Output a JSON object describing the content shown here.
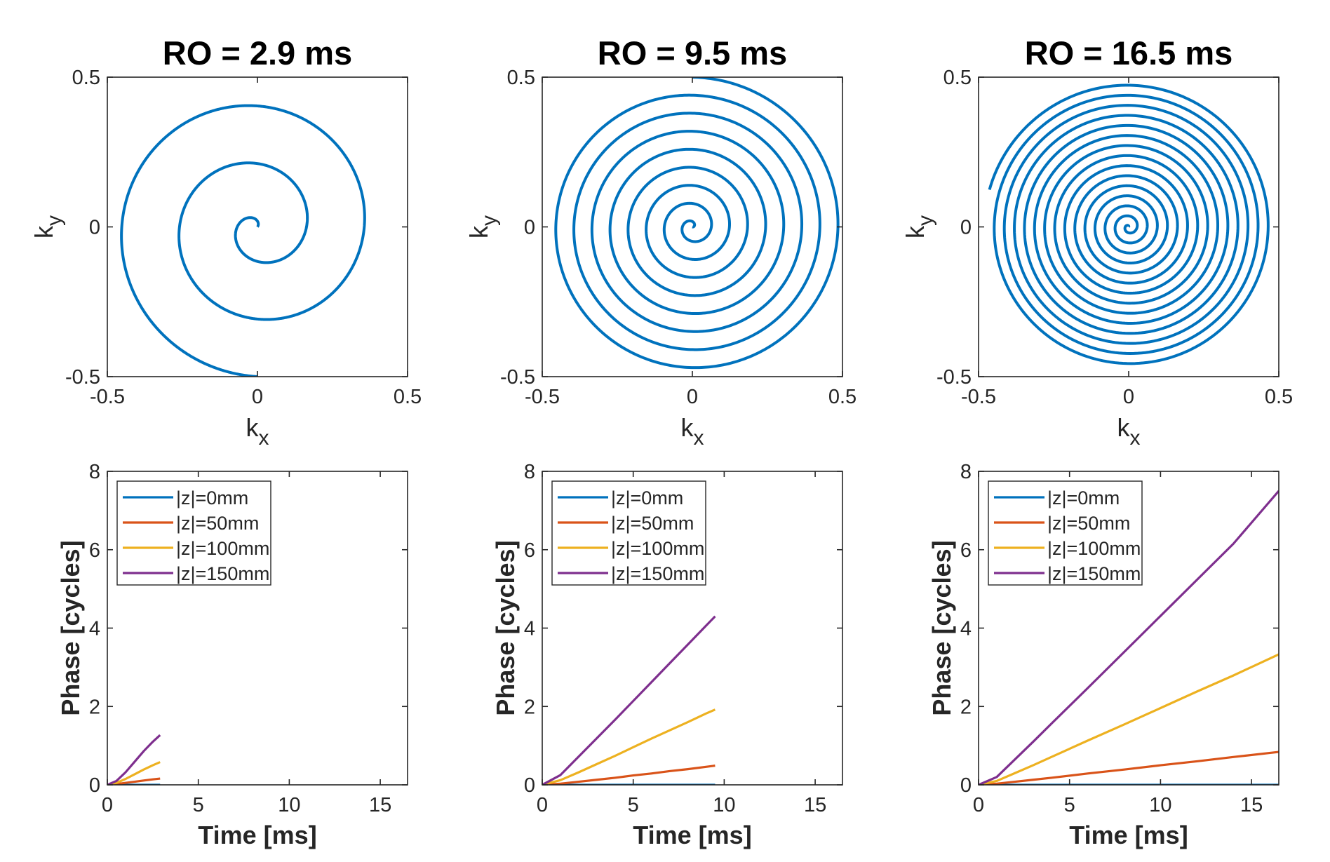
{
  "colors": {
    "spiral": "#0072BD",
    "z0": "#0072BD",
    "z50": "#D95319",
    "z100": "#EDB120",
    "z150": "#7E2F8E",
    "axes": "#262626"
  },
  "chart_data": [
    {
      "type": "line",
      "panel": "spiral",
      "title": "RO = 2.9 ms",
      "xlabel": "k",
      "xlabel_sub": "x",
      "ylabel": "k",
      "ylabel_sub": "y",
      "xlim": [
        -0.5,
        0.5
      ],
      "ylim": [
        -0.5,
        0.5
      ],
      "xticks": [
        "-0.5",
        "0",
        "0.5"
      ],
      "yticks": [
        "-0.5",
        "0",
        "0.5"
      ],
      "spiral": {
        "turns": 2.6,
        "r_max": 0.5,
        "end_angle_deg": -90
      }
    },
    {
      "type": "line",
      "panel": "spiral",
      "title": "RO = 9.5 ms",
      "xlabel": "k",
      "xlabel_sub": "x",
      "ylabel": "k",
      "ylabel_sub": "y",
      "xlim": [
        -0.5,
        0.5
      ],
      "ylim": [
        -0.5,
        0.5
      ],
      "xticks": [
        "-0.5",
        "0",
        "0.5"
      ],
      "yticks": [
        "-0.5",
        "0",
        "0.5"
      ],
      "spiral": {
        "turns": 8.3,
        "r_max": 0.5,
        "end_angle_deg": 90
      }
    },
    {
      "type": "line",
      "panel": "spiral",
      "title": "RO = 16.5 ms",
      "xlabel": "k",
      "xlabel_sub": "x",
      "ylabel": "k",
      "ylabel_sub": "y",
      "xlim": [
        -0.5,
        0.5
      ],
      "ylim": [
        -0.5,
        0.5
      ],
      "xticks": [
        "-0.5",
        "0",
        "0.5"
      ],
      "yticks": [
        "-0.5",
        "0",
        "0.5"
      ],
      "spiral": {
        "turns": 14.3,
        "r_max": 0.48,
        "end_angle_deg": 165
      }
    },
    {
      "type": "line",
      "panel": "phase",
      "xlabel": "Time [ms]",
      "ylabel": "Phase [cycles]",
      "xlim": [
        0,
        16.5
      ],
      "ylim": [
        0,
        8
      ],
      "xticks": [
        "0",
        "5",
        "10",
        "15"
      ],
      "yticks": [
        "0",
        "2",
        "4",
        "6",
        "8"
      ],
      "legend_position": "top-left",
      "series": [
        {
          "name": "|z|=0mm",
          "x": [
            0,
            2.9
          ],
          "y": [
            0,
            0
          ]
        },
        {
          "name": "|z|=50mm",
          "x": [
            0,
            0.5,
            1.0,
            1.5,
            2.0,
            2.5,
            2.9
          ],
          "y": [
            0,
            0.02,
            0.05,
            0.08,
            0.11,
            0.14,
            0.16
          ]
        },
        {
          "name": "|z|=100mm",
          "x": [
            0,
            0.5,
            1.0,
            1.5,
            2.0,
            2.5,
            2.9
          ],
          "y": [
            0,
            0.05,
            0.15,
            0.27,
            0.39,
            0.5,
            0.58
          ]
        },
        {
          "name": "|z|=150mm",
          "x": [
            0,
            0.5,
            1.0,
            1.5,
            2.0,
            2.5,
            2.9
          ],
          "y": [
            0,
            0.1,
            0.32,
            0.59,
            0.86,
            1.1,
            1.27
          ]
        }
      ]
    },
    {
      "type": "line",
      "panel": "phase",
      "xlabel": "Time [ms]",
      "ylabel": "Phase [cycles]",
      "xlim": [
        0,
        16.5
      ],
      "ylim": [
        0,
        8
      ],
      "xticks": [
        "0",
        "5",
        "10",
        "15"
      ],
      "yticks": [
        "0",
        "2",
        "4",
        "6",
        "8"
      ],
      "legend_position": "top-left",
      "series": [
        {
          "name": "|z|=0mm",
          "x": [
            0,
            9.5
          ],
          "y": [
            0,
            0
          ]
        },
        {
          "name": "|z|=50mm",
          "x": [
            0,
            1,
            2,
            3,
            4,
            5,
            6,
            7,
            8,
            9,
            9.5
          ],
          "y": [
            0,
            0.03,
            0.08,
            0.13,
            0.18,
            0.24,
            0.29,
            0.35,
            0.4,
            0.46,
            0.49
          ]
        },
        {
          "name": "|z|=100mm",
          "x": [
            0,
            1,
            2,
            3,
            4,
            5,
            6,
            7,
            8,
            9,
            9.5
          ],
          "y": [
            0,
            0.12,
            0.32,
            0.53,
            0.74,
            0.96,
            1.18,
            1.39,
            1.6,
            1.82,
            1.92
          ]
        },
        {
          "name": "|z|=150mm",
          "x": [
            0,
            1,
            2,
            3,
            4,
            5,
            6,
            7,
            8,
            9,
            9.5
          ],
          "y": [
            0,
            0.25,
            0.72,
            1.19,
            1.66,
            2.14,
            2.62,
            3.1,
            3.58,
            4.06,
            4.3
          ]
        }
      ]
    },
    {
      "type": "line",
      "panel": "phase",
      "xlabel": "Time [ms]",
      "ylabel": "Phase [cycles]",
      "xlim": [
        0,
        16.5
      ],
      "ylim": [
        0,
        8
      ],
      "xticks": [
        "0",
        "5",
        "10",
        "15"
      ],
      "yticks": [
        "0",
        "2",
        "4",
        "6",
        "8"
      ],
      "legend_position": "top-left",
      "series": [
        {
          "name": "|z|=0mm",
          "x": [
            0,
            16.5
          ],
          "y": [
            0,
            0
          ]
        },
        {
          "name": "|z|=50mm",
          "x": [
            0,
            1,
            2,
            3,
            4,
            6,
            8,
            10,
            12,
            14,
            16.5
          ],
          "y": [
            0,
            0.03,
            0.08,
            0.13,
            0.18,
            0.29,
            0.39,
            0.5,
            0.6,
            0.71,
            0.84
          ]
        },
        {
          "name": "|z|=100mm",
          "x": [
            0,
            1,
            2,
            3,
            4,
            6,
            8,
            10,
            12,
            14,
            16.5
          ],
          "y": [
            0,
            0.1,
            0.3,
            0.5,
            0.71,
            1.13,
            1.54,
            1.96,
            2.38,
            2.79,
            3.33
          ]
        },
        {
          "name": "|z|=150mm",
          "x": [
            0,
            1,
            2,
            3,
            4,
            6,
            8,
            10,
            12,
            14,
            16.5
          ],
          "y": [
            0,
            0.2,
            0.65,
            1.1,
            1.56,
            2.47,
            3.39,
            4.31,
            5.23,
            6.15,
            7.5
          ]
        }
      ]
    }
  ]
}
